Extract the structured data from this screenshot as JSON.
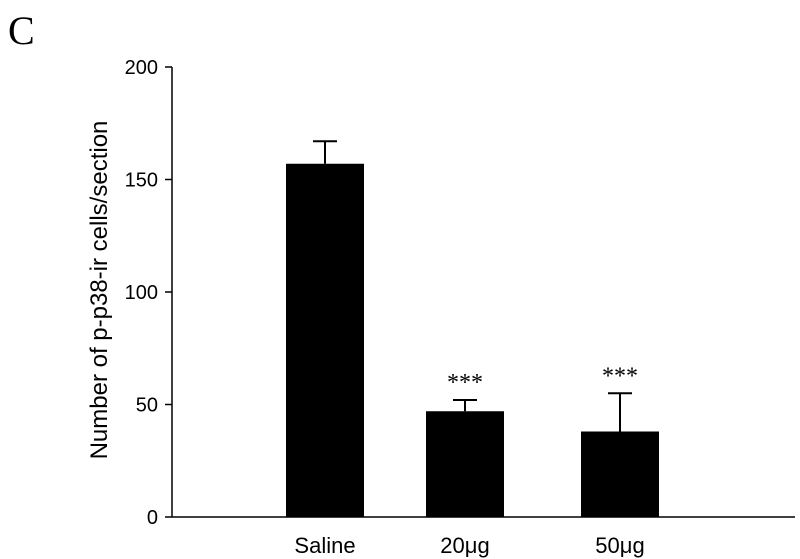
{
  "panel_label": "C",
  "chart_data": {
    "type": "bar",
    "categories": [
      "Saline",
      "20μg",
      "50μg"
    ],
    "values": [
      157,
      47,
      38
    ],
    "error": [
      10,
      5,
      17
    ],
    "annotations": [
      "",
      "***",
      "***"
    ],
    "ylabel": "Number of p-p38-ir cells/section",
    "xlabel": "",
    "ylim": [
      0,
      200
    ],
    "yticks": [
      0,
      50,
      100,
      150,
      200
    ],
    "grid": false,
    "bar_color": "#000000"
  }
}
